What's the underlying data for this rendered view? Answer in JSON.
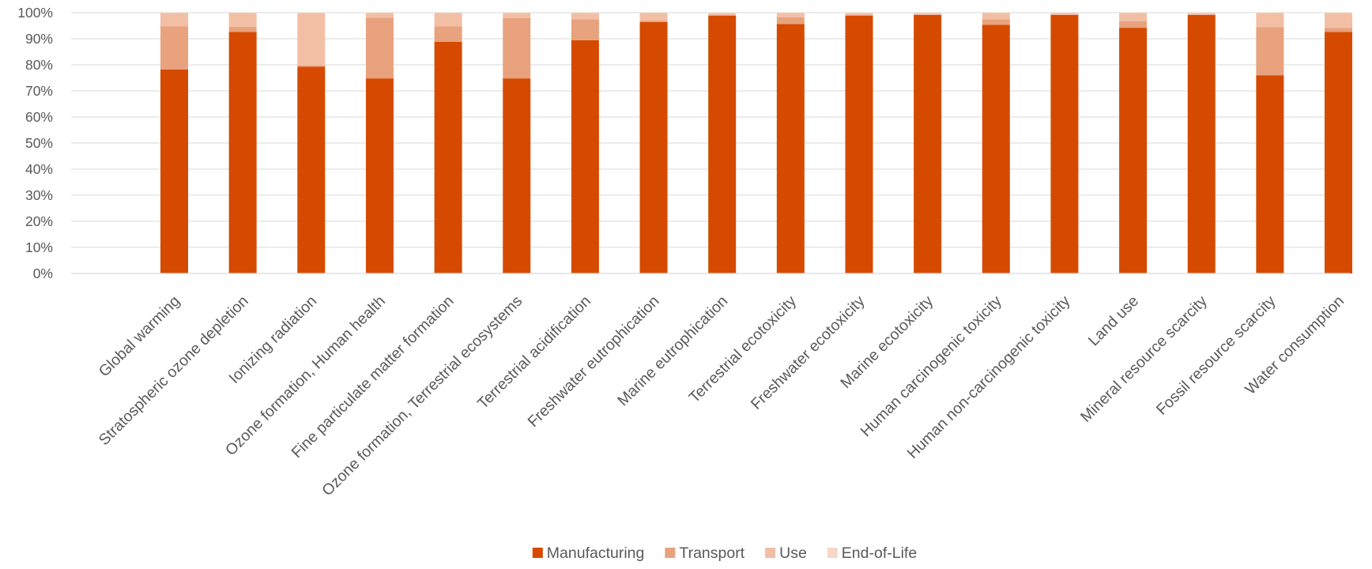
{
  "chart_data": {
    "type": "bar",
    "stacked": true,
    "percent": true,
    "title": "",
    "xlabel": "",
    "ylabel": "",
    "ylim": [
      0,
      100
    ],
    "y_ticks": [
      "0%",
      "10%",
      "20%",
      "30%",
      "40%",
      "50%",
      "60%",
      "70%",
      "80%",
      "90%",
      "100%"
    ],
    "grid": true,
    "legend_position": "bottom",
    "categories": [
      "Global warming",
      "Stratospheric ozone depletion",
      "Ionizing radiation",
      "Ozone formation, Human health",
      "Fine particulate matter formation",
      "Ozone formation, Terrestrial ecosystems",
      "Terrestrial acidification",
      "Freshwater eutrophication",
      "Marine eutrophication",
      "Terrestrial ecotoxicity",
      "Freshwater ecotoxicity",
      "Marine ecotoxicity",
      "Human carcinogenic toxicity",
      "Human non-carcinogenic toxicity",
      "Land use",
      "Mineral resource scarcity",
      "Fossil resource scarcity",
      "Water consumption"
    ],
    "series": [
      {
        "name": "Manufacturing",
        "color": "#D64A00",
        "values": [
          78.2,
          92.6,
          79.3,
          74.8,
          88.8,
          74.8,
          89.4,
          96.4,
          98.9,
          95.6,
          98.9,
          99.1,
          95.3,
          99.1,
          94.2,
          99.1,
          76.0,
          92.6
        ]
      },
      {
        "name": "Transport",
        "color": "#E8A27E",
        "values": [
          16.5,
          2.0,
          0.5,
          23.3,
          5.9,
          23.1,
          8.0,
          0.6,
          0.1,
          2.6,
          0.1,
          0.1,
          2.2,
          0.1,
          2.5,
          0.1,
          18.4,
          1.6
        ]
      },
      {
        "name": "Use",
        "color": "#F2BFA5",
        "values": [
          5.2,
          5.3,
          20.1,
          1.8,
          5.2,
          2.0,
          2.5,
          2.9,
          0.8,
          1.7,
          0.8,
          0.6,
          2.4,
          0.6,
          3.2,
          0.6,
          5.5,
          5.7
        ]
      },
      {
        "name": "End-of-Life",
        "color": "#F7D8C7",
        "values": [
          0.1,
          0.1,
          0.1,
          0.1,
          0.1,
          0.1,
          0.1,
          0.1,
          0.2,
          0.1,
          0.2,
          0.2,
          0.1,
          0.2,
          0.1,
          0.2,
          0.1,
          0.1
        ]
      }
    ]
  }
}
